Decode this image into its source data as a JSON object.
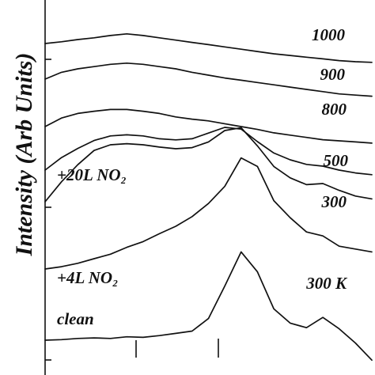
{
  "chart_data": {
    "type": "line",
    "ylabel": "Intensity (Arb Units)",
    "x": [
      0,
      5,
      10,
      15,
      20,
      25,
      30,
      35,
      40,
      45,
      50,
      55,
      60,
      65,
      70,
      75,
      80,
      85,
      90,
      95,
      100
    ],
    "series": [
      {
        "name": "clean",
        "label": "clean",
        "values": [
          0.0,
          0.01,
          0.03,
          0.04,
          0.03,
          0.06,
          0.05,
          0.08,
          0.12,
          0.16,
          0.38,
          0.95,
          1.55,
          1.2,
          0.55,
          0.3,
          0.22,
          0.4,
          0.2,
          -0.05,
          -0.35
        ]
      },
      {
        "name": "+4L NO2",
        "label": "+4L NO₂",
        "values": [
          0.0,
          0.04,
          0.1,
          0.18,
          0.26,
          0.38,
          0.48,
          0.62,
          0.75,
          0.92,
          1.15,
          1.45,
          1.95,
          1.8,
          1.2,
          0.9,
          0.65,
          0.58,
          0.4,
          0.35,
          0.3
        ]
      },
      {
        "name": "+20L NO2 300",
        "label": "300",
        "values": [
          1.0,
          1.35,
          1.65,
          1.9,
          2.0,
          2.02,
          2.0,
          1.96,
          1.93,
          1.95,
          2.05,
          2.25,
          2.3,
          1.98,
          1.62,
          1.42,
          1.3,
          1.32,
          1.2,
          1.1,
          1.05
        ]
      },
      {
        "name": "500",
        "label": "500",
        "values": [
          1.4,
          1.62,
          1.78,
          1.92,
          2.0,
          2.02,
          2.0,
          1.95,
          1.93,
          1.95,
          2.05,
          2.15,
          2.12,
          1.9,
          1.7,
          1.58,
          1.5,
          1.47,
          1.4,
          1.35,
          1.32
        ]
      },
      {
        "name": "800",
        "label": "800",
        "values": [
          1.85,
          2.0,
          2.08,
          2.12,
          2.15,
          2.15,
          2.12,
          2.08,
          2.02,
          1.98,
          1.95,
          1.9,
          1.85,
          1.8,
          1.74,
          1.7,
          1.66,
          1.62,
          1.6,
          1.58,
          1.56
        ]
      },
      {
        "name": "900",
        "label": "900",
        "values": [
          2.1,
          2.22,
          2.28,
          2.32,
          2.36,
          2.38,
          2.36,
          2.32,
          2.28,
          2.22,
          2.17,
          2.12,
          2.08,
          2.04,
          2.0,
          1.96,
          1.92,
          1.88,
          1.84,
          1.82,
          1.8
        ]
      },
      {
        "name": "1000",
        "label": "1000",
        "values": [
          2.3,
          2.33,
          2.37,
          2.4,
          2.44,
          2.47,
          2.44,
          2.4,
          2.36,
          2.32,
          2.28,
          2.24,
          2.2,
          2.16,
          2.12,
          2.09,
          2.06,
          2.03,
          2.0,
          1.98,
          1.97
        ]
      }
    ],
    "annotations": [
      {
        "text": "+20L NO₂"
      },
      {
        "text": "300 K"
      }
    ],
    "ylim": [
      -0.4,
      2.6
    ],
    "xlim": [
      0,
      100
    ],
    "grid": false
  }
}
